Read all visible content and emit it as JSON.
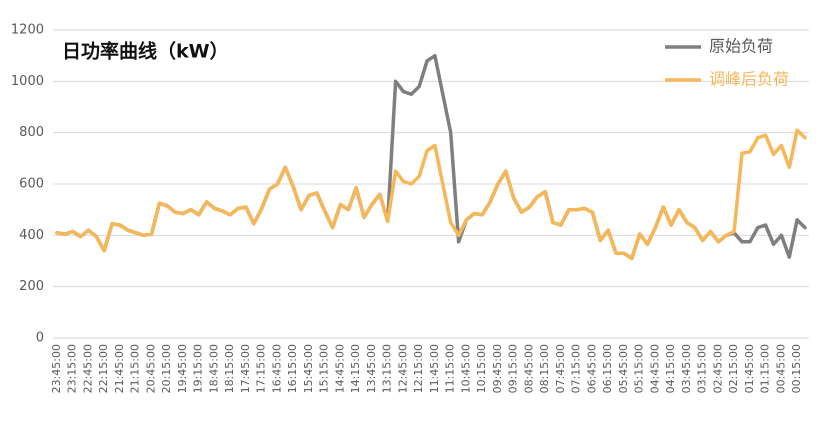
{
  "chart_data": {
    "type": "line",
    "title": "日功率曲线（kW）",
    "categories": [
      "23:45:00",
      null,
      "23:15:00",
      null,
      "22:45:00",
      null,
      "22:15:00",
      null,
      "21:45:00",
      null,
      "21:15:00",
      null,
      "20:45:00",
      null,
      "20:15:00",
      null,
      "19:45:00",
      null,
      "19:15:00",
      null,
      "18:45:00",
      null,
      "18:15:00",
      null,
      "17:45:00",
      null,
      "17:15:00",
      null,
      "16:45:00",
      null,
      "16:15:00",
      null,
      "15:45:00",
      null,
      "15:15:00",
      null,
      "14:45:00",
      null,
      "14:15:00",
      null,
      "13:45:00",
      null,
      "13:15:00",
      null,
      "12:45:00",
      null,
      "12:15:00",
      null,
      "11:45:00",
      null,
      "11:15:00",
      null,
      "10:45:00",
      null,
      "10:15:00",
      null,
      "09:45:00",
      null,
      "09:15:00",
      null,
      "08:45:00",
      null,
      "08:15:00",
      null,
      "07:45:00",
      null,
      "07:15:00",
      null,
      "06:45:00",
      null,
      "06:15:00",
      null,
      "05:45:00",
      null,
      "05:15:00",
      null,
      "04:45:00",
      null,
      "04:15:00",
      null,
      "03:45:00",
      null,
      "03:15:00",
      null,
      "02:45:00",
      null,
      "02:15:00",
      null,
      "01:45:00",
      null,
      "01:15:00",
      null,
      "00:45:00",
      null,
      "00:15:00",
      null
    ],
    "series": [
      {
        "name": "原始负荷",
        "color": "#7f7f7f",
        "values": [
          410,
          405,
          415,
          395,
          420,
          395,
          340,
          445,
          440,
          420,
          410,
          400,
          405,
          525,
          515,
          490,
          485,
          500,
          480,
          530,
          505,
          495,
          480,
          505,
          510,
          445,
          505,
          580,
          600,
          665,
          590,
          500,
          555,
          565,
          495,
          430,
          520,
          500,
          585,
          470,
          520,
          560,
          455,
          1000,
          960,
          950,
          980,
          1080,
          1100,
          950,
          800,
          375,
          460,
          485,
          480,
          530,
          600,
          650,
          545,
          490,
          510,
          550,
          570,
          450,
          440,
          500,
          500,
          505,
          490,
          380,
          420,
          330,
          330,
          310,
          405,
          365,
          430,
          510,
          440,
          500,
          450,
          430,
          380,
          415,
          375,
          400,
          410,
          375,
          375,
          430,
          440,
          365,
          400,
          315,
          460,
          430
        ]
      },
      {
        "name": "调峰后负荷",
        "color": "#f5b757",
        "values": [
          410,
          405,
          415,
          395,
          420,
          395,
          340,
          445,
          440,
          420,
          410,
          400,
          405,
          525,
          515,
          490,
          485,
          500,
          480,
          530,
          505,
          495,
          480,
          505,
          510,
          445,
          505,
          580,
          600,
          665,
          590,
          500,
          555,
          565,
          495,
          430,
          520,
          500,
          585,
          470,
          520,
          560,
          455,
          650,
          610,
          600,
          630,
          730,
          750,
          600,
          450,
          400,
          460,
          485,
          480,
          530,
          600,
          650,
          545,
          490,
          510,
          550,
          570,
          450,
          440,
          500,
          500,
          505,
          490,
          380,
          420,
          330,
          330,
          310,
          405,
          365,
          430,
          510,
          440,
          500,
          450,
          430,
          380,
          415,
          375,
          400,
          415,
          720,
          725,
          780,
          790,
          715,
          750,
          665,
          810,
          780
        ]
      }
    ],
    "ylim": [
      0,
      1200
    ],
    "yticks": [
      0,
      200,
      400,
      600,
      800,
      1000,
      1200
    ],
    "grid": true,
    "legend": "top-right"
  }
}
